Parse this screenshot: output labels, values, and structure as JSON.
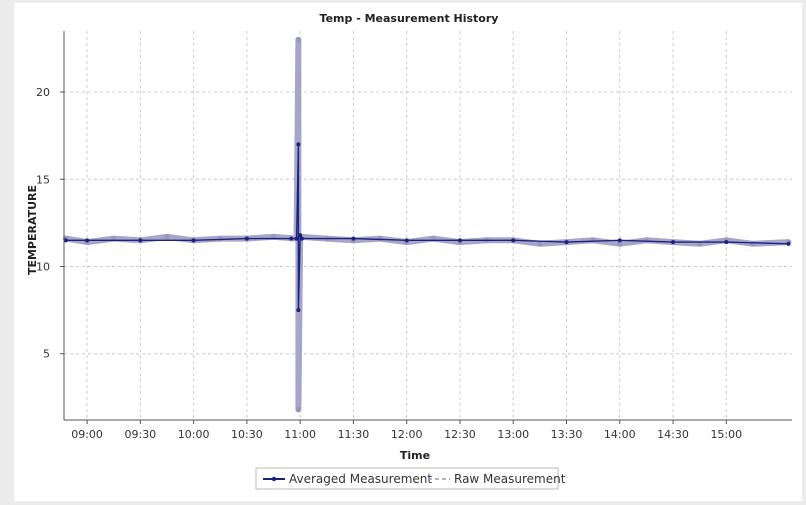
{
  "chart_data": {
    "type": "line",
    "title": "Temp - Measurement History",
    "xlabel": "Time",
    "ylabel": "TEMPERATURE",
    "x_ticks": [
      "09:00",
      "09:30",
      "10:00",
      "10:30",
      "11:00",
      "11:30",
      "12:00",
      "12:30",
      "13:00",
      "13:30",
      "14:00",
      "14:30",
      "15:00"
    ],
    "y_ticks": [
      5,
      10,
      15,
      20
    ],
    "xlim": [
      "08:47",
      "15:37"
    ],
    "ylim": [
      1.2,
      23.5
    ],
    "grid": true,
    "legend_position": "bottom-center",
    "series": [
      {
        "name": "Averaged Measurement",
        "color": "#1a237e",
        "style": "solid",
        "x": [
          "08:48",
          "09:00",
          "09:30",
          "10:00",
          "10:30",
          "10:55",
          "10:58",
          "10:59",
          "10:59",
          "11:00",
          "11:01",
          "11:30",
          "12:00",
          "12:30",
          "13:00",
          "13:30",
          "14:00",
          "14:30",
          "15:00",
          "15:35"
        ],
        "values": [
          11.5,
          11.5,
          11.5,
          11.5,
          11.6,
          11.6,
          11.6,
          17.0,
          7.5,
          11.8,
          11.6,
          11.6,
          11.5,
          11.5,
          11.5,
          11.4,
          11.5,
          11.4,
          11.4,
          11.3
        ]
      },
      {
        "name": "Raw Measurement",
        "color": "#9896c0",
        "style": "dashed",
        "x": [
          "08:48",
          "09:00",
          "09:15",
          "09:30",
          "09:45",
          "10:00",
          "10:15",
          "10:30",
          "10:45",
          "10:58",
          "10:59",
          "10:59",
          "11:00",
          "11:15",
          "11:30",
          "11:45",
          "12:00",
          "12:15",
          "12:30",
          "12:45",
          "13:00",
          "13:15",
          "13:30",
          "13:45",
          "14:00",
          "14:15",
          "14:30",
          "14:45",
          "15:00",
          "15:15",
          "15:35"
        ],
        "values": [
          11.6,
          11.4,
          11.6,
          11.5,
          11.7,
          11.5,
          11.6,
          11.6,
          11.7,
          11.6,
          23.0,
          1.8,
          11.7,
          11.6,
          11.5,
          11.6,
          11.4,
          11.6,
          11.4,
          11.5,
          11.5,
          11.3,
          11.4,
          11.5,
          11.3,
          11.5,
          11.4,
          11.3,
          11.5,
          11.3,
          11.4
        ]
      }
    ]
  }
}
